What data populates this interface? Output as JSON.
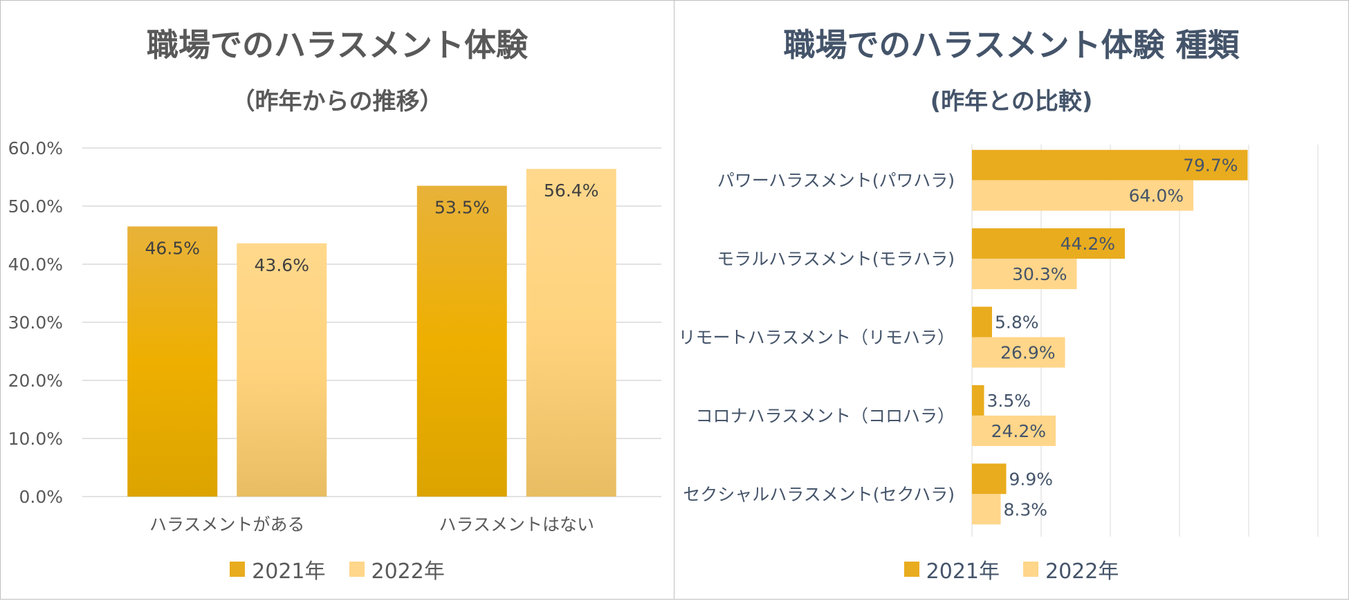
{
  "colors": {
    "series_2021": "#e9ac1e",
    "series_2022": "#ffd68a",
    "title_left": "#595959",
    "title_right": "#44546a",
    "gridline": "#d9d9d9"
  },
  "left_chart": {
    "title": "職場でのハラスメント体験",
    "subtitle": "（昨年からの推移）",
    "legend": [
      "2021年",
      "2022年"
    ]
  },
  "right_chart": {
    "title": "職場でのハラスメント体験 種類",
    "subtitle": "(昨年との比較)",
    "legend": [
      "2021年",
      "2022年"
    ]
  },
  "chart_data": [
    {
      "type": "bar",
      "title": "職場でのハラスメント体験",
      "subtitle": "（昨年からの推移）",
      "categories": [
        "ハラスメントがある",
        "ハラスメントはない"
      ],
      "series": [
        {
          "name": "2021年",
          "values": [
            46.5,
            53.5
          ],
          "labels": [
            "46.5%",
            "53.5%"
          ]
        },
        {
          "name": "2022年",
          "values": [
            43.6,
            56.4
          ],
          "labels": [
            "43.6%",
            "56.4%"
          ]
        }
      ],
      "ylim": [
        0,
        60
      ],
      "yticks": [
        "0.0%",
        "10.0%",
        "20.0%",
        "30.0%",
        "40.0%",
        "50.0%",
        "60.0%"
      ],
      "grid": true,
      "legend_position": "bottom"
    },
    {
      "type": "bar",
      "orientation": "horizontal",
      "title": "職場でのハラスメント体験 種類",
      "subtitle": "(昨年との比較)",
      "categories": [
        "パワーハラスメント(パワハラ)",
        "モラルハラスメント(モラハラ)",
        "リモートハラスメント（リモハラ）",
        "コロナハラスメント（コロハラ）",
        "セクシャルハラスメント(セクハラ)"
      ],
      "series": [
        {
          "name": "2021年",
          "values": [
            79.7,
            44.2,
            5.8,
            3.5,
            9.9
          ],
          "labels": [
            "79.7%",
            "44.2%",
            "5.8%",
            "3.5%",
            "9.9%"
          ]
        },
        {
          "name": "2022年",
          "values": [
            64.0,
            30.3,
            26.9,
            24.2,
            8.3
          ],
          "labels": [
            "64.0%",
            "30.3%",
            "26.9%",
            "24.2%",
            "8.3%"
          ]
        }
      ],
      "xlim": [
        0,
        100
      ],
      "grid": true,
      "legend_position": "bottom"
    }
  ]
}
